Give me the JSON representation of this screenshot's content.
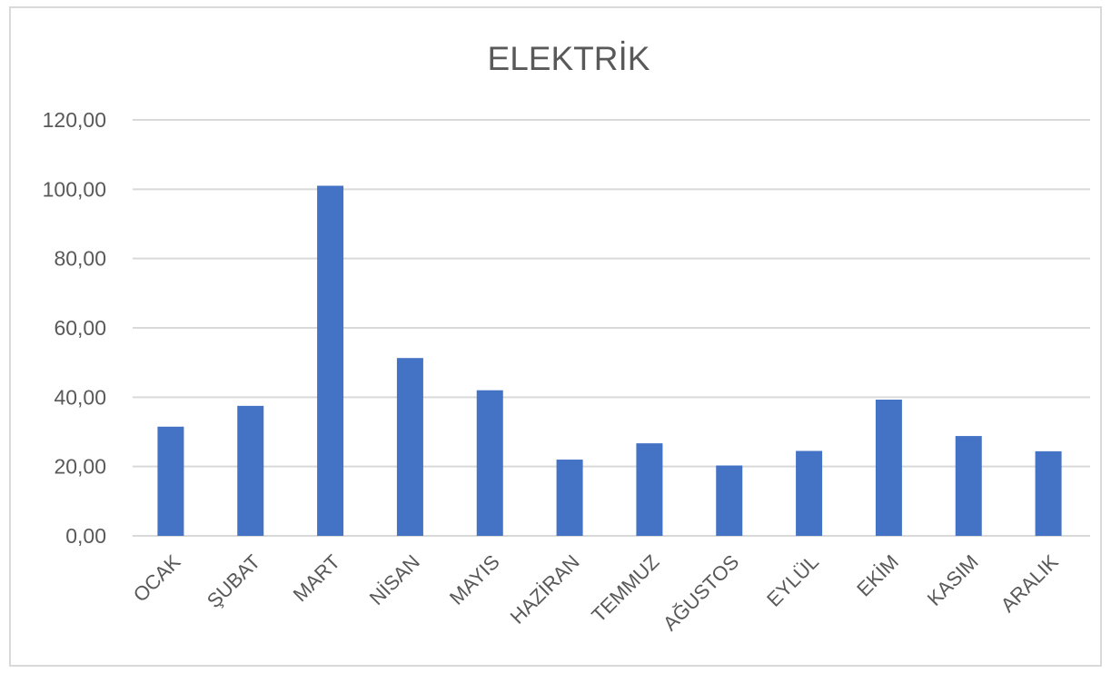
{
  "chart_data": {
    "type": "bar",
    "title": "ELEKTRİK",
    "xlabel": "",
    "ylabel": "",
    "categories": [
      "OCAK",
      "ŞUBAT",
      "MART",
      "NİSAN",
      "MAYIS",
      "HAZİRAN",
      "TEMMUZ",
      "AĞUSTOS",
      "EYLÜL",
      "EKİM",
      "KASIM",
      "ARALIK"
    ],
    "values": [
      31.5,
      37.5,
      101.0,
      51.3,
      42.0,
      22.0,
      26.7,
      20.3,
      24.5,
      39.3,
      28.8,
      24.4
    ],
    "ylim": [
      0,
      120
    ],
    "yticks": [
      "0,00",
      "20,00",
      "40,00",
      "60,00",
      "80,00",
      "100,00",
      "120,00"
    ],
    "ytick_values": [
      0,
      20,
      40,
      60,
      80,
      100,
      120
    ],
    "grid": true,
    "legend": "none",
    "bar_color": "#4472c4",
    "grid_color": "#d9d9d9",
    "text_color": "#595959"
  }
}
